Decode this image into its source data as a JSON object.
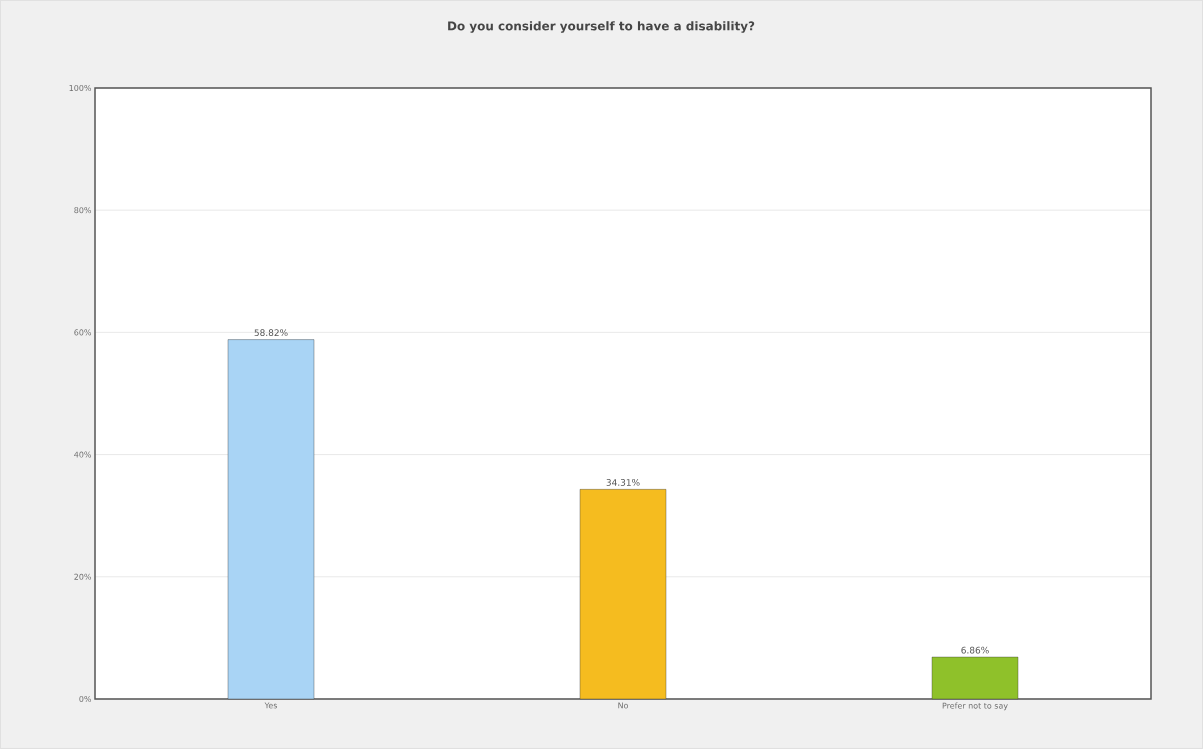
{
  "chart_data": {
    "type": "bar",
    "title": "Do you consider yourself to have a disability?",
    "categories": [
      "Yes",
      "No",
      "Prefer not to say"
    ],
    "values": [
      58.82,
      34.31,
      6.86
    ],
    "value_labels": [
      "58.82%",
      "34.31%",
      "6.86%"
    ],
    "colors": [
      "#a9d4f5",
      "#f5bc1f",
      "#8fc12a"
    ],
    "ylim": [
      0,
      100
    ],
    "yticks": [
      {
        "value": 0,
        "label": "0%"
      },
      {
        "value": 20,
        "label": "20%"
      },
      {
        "value": 40,
        "label": "40%"
      },
      {
        "value": 60,
        "label": "60%"
      },
      {
        "value": 80,
        "label": "80%"
      },
      {
        "value": 100,
        "label": "100%"
      }
    ],
    "grid": "y"
  }
}
